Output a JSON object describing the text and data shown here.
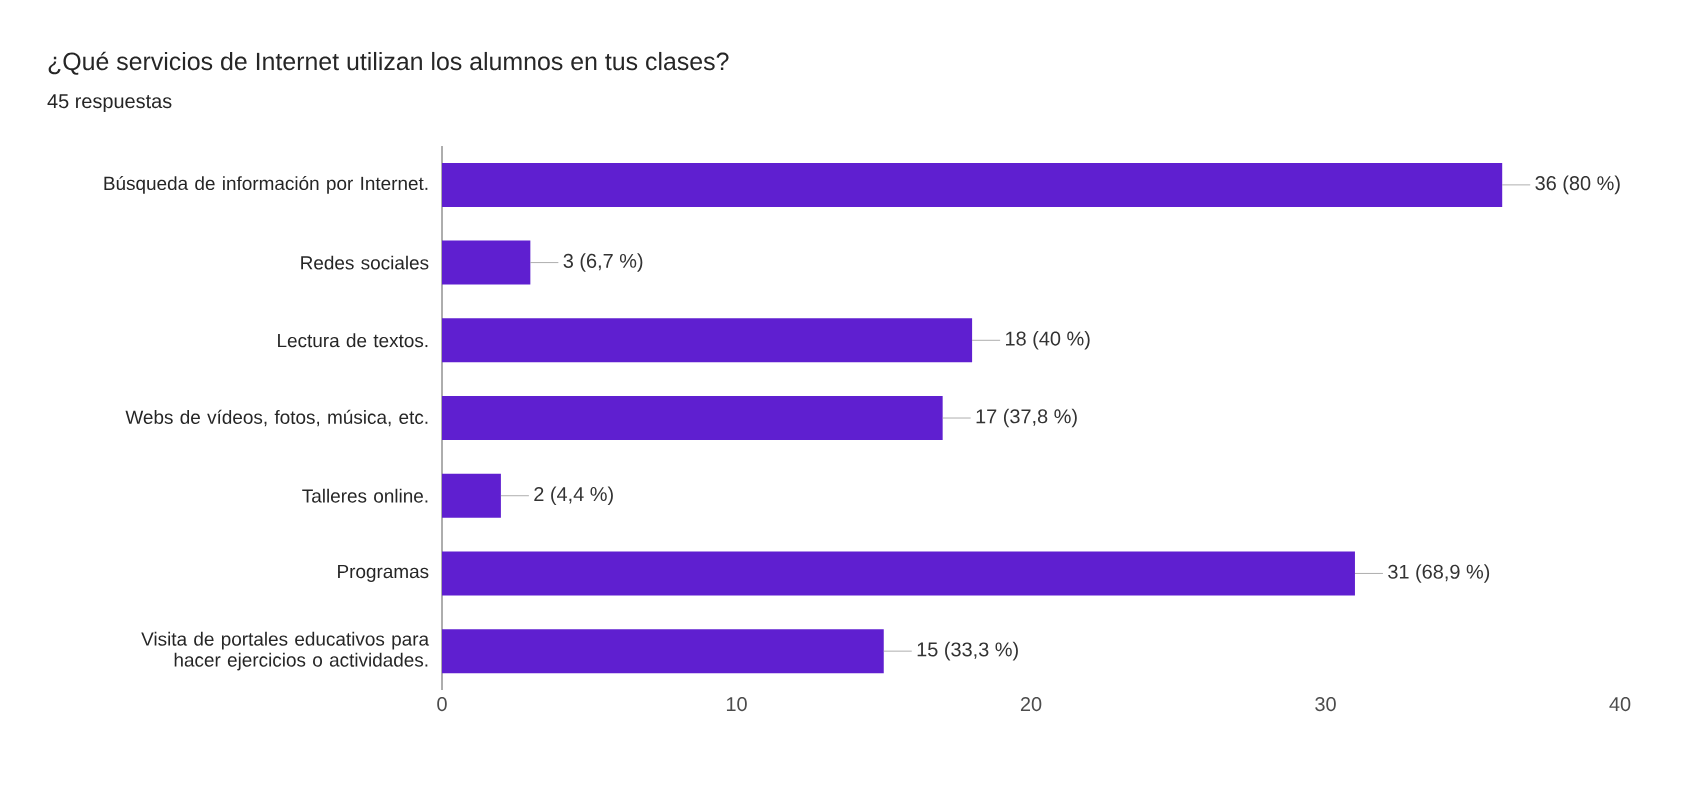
{
  "chart_data": {
    "type": "bar",
    "orientation": "horizontal",
    "title": "¿Qué servicios de Internet utilizan los alumnos en tus clases?",
    "subtitle": "45 respuestas",
    "categories": [
      "Búsqueda de información por Internet.",
      "Redes sociales",
      "Lectura de textos.",
      "Webs de vídeos, fotos, música, etc.",
      "Talleres online.",
      "Programas",
      "Visita de portales educativos para hacer ejercicios o actividades."
    ],
    "values": [
      36,
      3,
      18,
      17,
      2,
      31,
      15
    ],
    "value_labels": [
      "36 (80 %)",
      "3 (6,7 %)",
      "18 (40 %)",
      "17 (37,8 %)",
      "2 (4,4 %)",
      "31 (68,9 %)",
      "15 (33,3 %)"
    ],
    "color": "#5f1fd0",
    "xlim": [
      0,
      40
    ],
    "xticks": [
      0,
      10,
      20,
      30,
      40
    ],
    "grid": false
  }
}
